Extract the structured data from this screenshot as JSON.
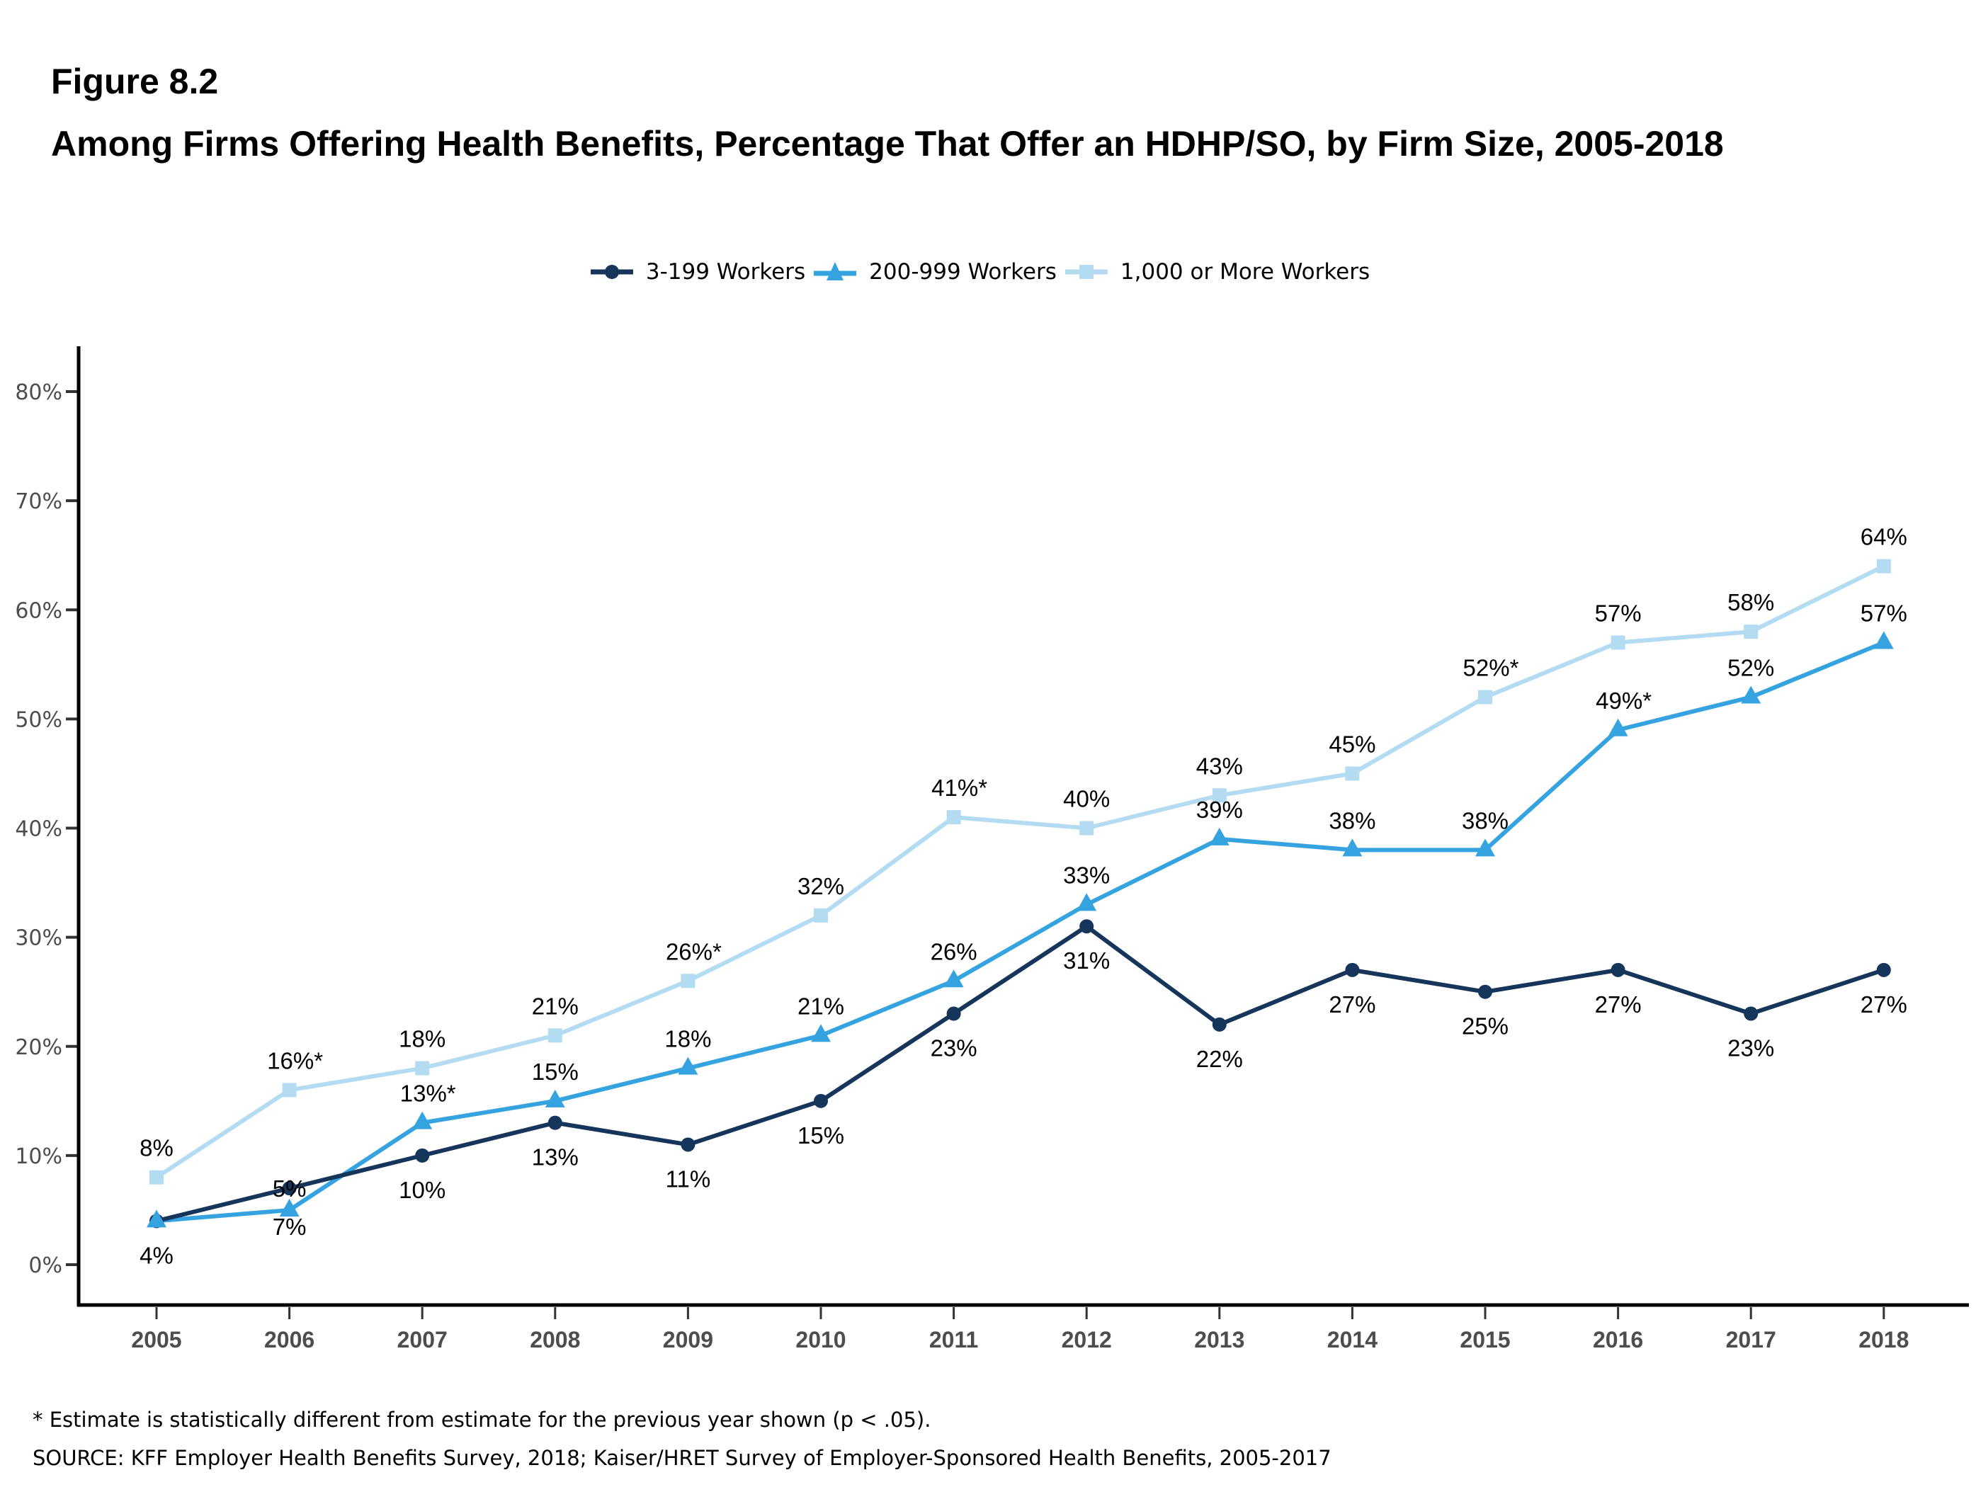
{
  "figure": {
    "label": "Figure 8.2",
    "title": "Among Firms Offering Health Benefits, Percentage That Offer an HDHP/SO, by Firm Size, 2005-2018"
  },
  "legend": [
    {
      "label": "3-199 Workers",
      "marker": "circle",
      "color": "#15355a"
    },
    {
      "label": "200-999 Workers",
      "marker": "triangle",
      "color": "#35a3e0"
    },
    {
      "label": "1,000 or More Workers",
      "marker": "square",
      "color": "#b3dcf2"
    }
  ],
  "footnotes": {
    "significance": "* Estimate is statistically different from estimate for the previous year shown (p < .05).",
    "source": "SOURCE: KFF Employer Health Benefits Survey, 2018; Kaiser/HRET Survey of Employer-Sponsored Health Benefits, 2005-2017"
  },
  "chart_data": {
    "type": "line",
    "title": "Among Firms Offering Health Benefits, Percentage That Offer an HDHP/SO, by Firm Size, 2005-2018",
    "xlabel": "",
    "ylabel": "",
    "x": [
      "2005",
      "2006",
      "2007",
      "2008",
      "2009",
      "2010",
      "2011",
      "2012",
      "2013",
      "2014",
      "2015",
      "2016",
      "2017",
      "2018"
    ],
    "ylim": [
      0,
      80
    ],
    "yticks": [
      0,
      10,
      20,
      30,
      40,
      50,
      60,
      70,
      80
    ],
    "ytick_labels": [
      "0%",
      "10%",
      "20%",
      "30%",
      "40%",
      "50%",
      "60%",
      "70%",
      "80%"
    ],
    "grid": false,
    "legend_position": "top-center",
    "series": [
      {
        "name": "3-199 Workers",
        "color": "#15355a",
        "marker": "circle",
        "values": [
          4,
          7,
          10,
          13,
          11,
          15,
          23,
          31,
          22,
          27,
          25,
          27,
          23,
          27
        ],
        "labels": [
          "4%",
          "7%",
          "10%",
          "13%",
          "11%",
          "15%",
          "23%",
          "31%",
          "22%",
          "27%",
          "25%",
          "27%",
          "23%",
          "27%"
        ],
        "label_position": [
          "below",
          "below",
          "below",
          "below",
          "below",
          "below",
          "below",
          "below",
          "below",
          "below",
          "below",
          "below",
          "below",
          "below"
        ]
      },
      {
        "name": "200-999 Workers",
        "color": "#35a3e0",
        "marker": "triangle",
        "values": [
          4,
          5,
          13,
          15,
          18,
          21,
          26,
          33,
          39,
          38,
          38,
          49,
          52,
          57
        ],
        "labels": [
          "",
          "5%",
          "13%*",
          "15%",
          "18%",
          "21%",
          "26%",
          "33%",
          "39%",
          "38%",
          "38%",
          "49%*",
          "52%",
          "57%"
        ],
        "label_position": [
          "above",
          "above-far",
          "above",
          "above",
          "above",
          "above",
          "above",
          "above",
          "above",
          "above",
          "above",
          "above",
          "above",
          "above"
        ]
      },
      {
        "name": "1,000 or More Workers",
        "color": "#b3dcf2",
        "marker": "square",
        "values": [
          8,
          16,
          18,
          21,
          26,
          32,
          41,
          40,
          43,
          45,
          52,
          57,
          58,
          64
        ],
        "labels": [
          "8%",
          "16%*",
          "18%",
          "21%",
          "26%*",
          "32%",
          "41%*",
          "40%",
          "43%",
          "45%",
          "52%*",
          "57%",
          "58%",
          "64%"
        ],
        "label_position": [
          "above",
          "above",
          "above",
          "above",
          "above",
          "above",
          "above",
          "above",
          "above",
          "above",
          "above",
          "above",
          "above",
          "above"
        ]
      }
    ]
  }
}
